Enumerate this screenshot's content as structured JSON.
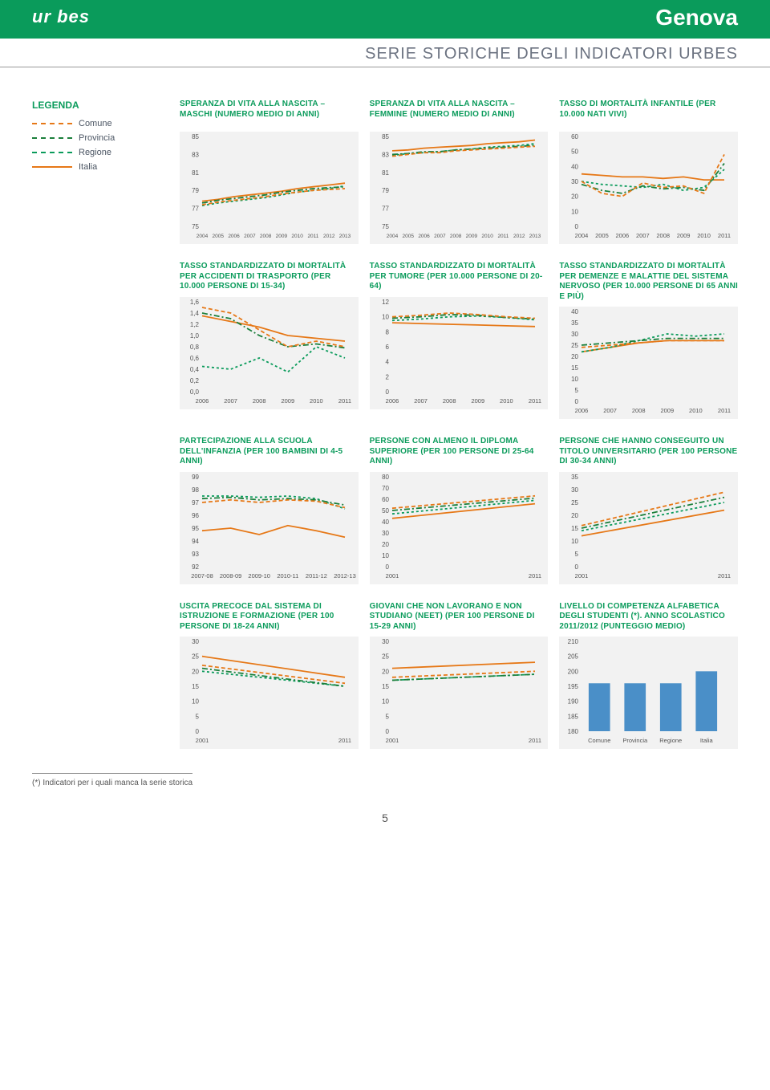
{
  "header": {
    "logo": "ur bes",
    "city": "Genova",
    "subtitle": "SERIE STORICHE DEGLI INDICATORI URBES"
  },
  "legend": {
    "title": "LEGENDA",
    "items": [
      {
        "label": "Comune",
        "color": "#e67817",
        "dash": "4 3"
      },
      {
        "label": "Provincia",
        "color": "#1b7f3b",
        "dash": "6 3 2 3"
      },
      {
        "label": "Regione",
        "color": "#0a9b5b",
        "dash": "3 3"
      },
      {
        "label": "Italia",
        "color": "#e67817",
        "dash": ""
      }
    ]
  },
  "series_colors": {
    "comune": {
      "color": "#e67817",
      "dash": "5 3"
    },
    "provincia": {
      "color": "#1b7f3b",
      "dash": "7 3 2 3"
    },
    "regione": {
      "color": "#0a9b5b",
      "dash": "3 3"
    },
    "italia": {
      "color": "#e67817",
      "dash": ""
    }
  },
  "panels": [
    {
      "title": "SPERANZA DI VITA ALLA NASCITA – MASCHI (NUMERO MEDIO DI ANNI)",
      "ylim": [
        75,
        85
      ],
      "ytick_step": 2,
      "xlabels": [
        "2004",
        "2005",
        "2006",
        "2007",
        "2008",
        "2009",
        "2010",
        "2011",
        "2012",
        "2013"
      ],
      "series": {
        "comune": [
          77.4,
          77.7,
          77.9,
          78.1,
          78.3,
          78.6,
          78.8,
          79.0,
          79.1,
          79.2
        ],
        "provincia": [
          77.6,
          77.9,
          78.1,
          78.3,
          78.5,
          78.8,
          79.0,
          79.2,
          79.3,
          79.4
        ],
        "regione": [
          77.3,
          77.6,
          77.8,
          78.0,
          78.2,
          78.5,
          78.8,
          79.0,
          79.2,
          79.5
        ],
        "italia": [
          77.8,
          78.0,
          78.3,
          78.5,
          78.7,
          78.9,
          79.2,
          79.4,
          79.6,
          79.8
        ]
      }
    },
    {
      "title": "SPERANZA DI VITA ALLA NASCITA – FEMMINE (NUMERO MEDIO DI ANNI)",
      "ylim": [
        75,
        85
      ],
      "ytick_step": 2,
      "xlabels": [
        "2004",
        "2005",
        "2006",
        "2007",
        "2008",
        "2009",
        "2010",
        "2011",
        "2012",
        "2013"
      ],
      "series": {
        "comune": [
          82.8,
          83.0,
          83.2,
          83.2,
          83.4,
          83.5,
          83.6,
          83.7,
          83.8,
          83.9
        ],
        "provincia": [
          83.0,
          83.1,
          83.3,
          83.3,
          83.5,
          83.6,
          83.7,
          83.8,
          83.9,
          84.0
        ],
        "regione": [
          82.9,
          83.1,
          83.2,
          83.3,
          83.5,
          83.6,
          83.8,
          83.9,
          84.0,
          84.2
        ],
        "italia": [
          83.4,
          83.5,
          83.7,
          83.8,
          83.9,
          84.0,
          84.2,
          84.3,
          84.4,
          84.6
        ]
      }
    },
    {
      "title": "TASSO DI MORTALITÀ INFANTILE (PER 10.000 NATI VIVI)",
      "ylim": [
        0,
        60
      ],
      "ytick_step": 10,
      "xlabels": [
        "2004",
        "2005",
        "2006",
        "2007",
        "2008",
        "2009",
        "2010",
        "2011"
      ],
      "series": {
        "comune": [
          30,
          22,
          20,
          29,
          26,
          27,
          22,
          48
        ],
        "provincia": [
          28,
          24,
          22,
          27,
          25,
          26,
          24,
          42
        ],
        "regione": [
          30,
          28,
          27,
          26,
          28,
          24,
          26,
          38
        ],
        "italia": [
          35,
          34,
          33,
          33,
          32,
          33,
          31,
          31
        ]
      }
    },
    {
      "title": "TASSO STANDARDIZZATO DI MORTALITÀ PER ACCIDENTI DI TRASPORTO (PER 10.000 PERSONE DI 15-34)",
      "ylim": [
        0,
        1.6
      ],
      "ytick_step": 0.2,
      "decimals": 1,
      "comma": true,
      "xlabels": [
        "2006",
        "2007",
        "2008",
        "2009",
        "2010",
        "2011"
      ],
      "series": {
        "comune": [
          1.5,
          1.4,
          1.1,
          0.8,
          0.9,
          0.8
        ],
        "provincia": [
          1.4,
          1.3,
          1.0,
          0.8,
          0.85,
          0.78
        ],
        "regione": [
          0.45,
          0.4,
          0.6,
          0.35,
          0.8,
          0.6
        ],
        "italia": [
          1.35,
          1.25,
          1.15,
          1.0,
          0.95,
          0.9
        ]
      }
    },
    {
      "title": "TASSO STANDARDIZZATO DI MORTALITÀ PER TUMORE (PER 10.000 PERSONE DI 20-64)",
      "ylim": [
        0,
        12
      ],
      "ytick_step": 2,
      "xlabels": [
        "2006",
        "2007",
        "2008",
        "2009",
        "2010",
        "2011"
      ],
      "series": {
        "comune": [
          10.0,
          10.2,
          10.5,
          10.3,
          10.0,
          9.8
        ],
        "provincia": [
          9.8,
          10.0,
          10.3,
          10.2,
          9.9,
          9.7
        ],
        "regione": [
          9.5,
          9.7,
          10.0,
          10.1,
          9.9,
          9.6
        ],
        "italia": [
          9.2,
          9.1,
          9.0,
          8.9,
          8.8,
          8.7
        ]
      }
    },
    {
      "title": "TASSO STANDARDIZZATO DI MORTALITÀ PER DEMENZE E MALATTIE DEL SISTEMA NERVOSO (PER 10.000 PERSONE DI 65 ANNI E PIÙ)",
      "ylim": [
        0,
        40
      ],
      "ytick_step": 5,
      "xlabels": [
        "2006",
        "2007",
        "2008",
        "2009",
        "2010",
        "2011"
      ],
      "series": {
        "comune": [
          24,
          25,
          26,
          27,
          27,
          27
        ],
        "provincia": [
          25,
          26,
          27,
          28,
          28,
          28
        ],
        "regione": [
          22,
          24,
          27,
          30,
          29,
          30
        ],
        "italia": [
          22,
          24,
          26,
          27,
          27,
          27
        ]
      }
    },
    {
      "title": "PARTECIPAZIONE ALLA SCUOLA DELL'INFANZIA (PER 100 BAMBINI DI 4-5 ANNI)",
      "ylim": [
        92,
        99
      ],
      "ytick_step": 1,
      "xlabels": [
        "2007-08",
        "2008-09",
        "2009-10",
        "2010-11",
        "2011-12",
        "2012-13"
      ],
      "series": {
        "comune": [
          97.0,
          97.2,
          97.0,
          97.2,
          97.1,
          96.6
        ],
        "provincia": [
          97.3,
          97.4,
          97.2,
          97.3,
          97.2,
          96.8
        ],
        "regione": [
          97.5,
          97.5,
          97.4,
          97.5,
          97.3,
          96.5
        ],
        "italia": [
          94.8,
          95.0,
          94.5,
          95.2,
          94.8,
          94.3
        ]
      }
    },
    {
      "title": "PERSONE CON ALMENO IL DIPLOMA SUPERIORE (PER 100 PERSONE DI 25-64 ANNI)",
      "ylim": [
        0,
        80
      ],
      "ytick_step": 10,
      "xlabels": [
        "2001",
        "2011"
      ],
      "series": {
        "comune": [
          52,
          63
        ],
        "provincia": [
          50,
          61
        ],
        "regione": [
          47,
          59
        ],
        "italia": [
          43,
          56
        ]
      }
    },
    {
      "title": "PERSONE CHE HANNO CONSEGUITO UN TITOLO UNIVERSITARIO (PER 100 PERSONE DI 30-34 ANNI)",
      "ylim": [
        0,
        35
      ],
      "ytick_step": 5,
      "xlabels": [
        "2001",
        "2011"
      ],
      "series": {
        "comune": [
          16,
          29
        ],
        "provincia": [
          15,
          27
        ],
        "regione": [
          14,
          25
        ],
        "italia": [
          12,
          22
        ]
      }
    },
    {
      "title": "USCITA PRECOCE DAL SISTEMA DI ISTRUZIONE E FORMAZIONE (PER 100 PERSONE DI 18-24 ANNI)",
      "ylim": [
        0,
        30
      ],
      "ytick_step": 5,
      "xlabels": [
        "2001",
        "2011"
      ],
      "series": {
        "comune": [
          22,
          16
        ],
        "provincia": [
          21,
          15
        ],
        "regione": [
          20,
          15
        ],
        "italia": [
          25,
          18
        ]
      }
    },
    {
      "title": "GIOVANI CHE NON LAVORANO E NON STUDIANO (NEET) (PER 100 PERSONE DI 15-29 ANNI)",
      "ylim": [
        0,
        30
      ],
      "ytick_step": 5,
      "xlabels": [
        "2001",
        "2011"
      ],
      "series": {
        "comune": [
          18,
          20
        ],
        "provincia": [
          17,
          19
        ],
        "regione": [
          17,
          19
        ],
        "italia": [
          21,
          23
        ]
      }
    },
    {
      "title": "LIVELLO DI COMPETENZA ALFABETICA DEGLI STUDENTI (*). ANNO SCOLASTICO 2011/2012 (PUNTEGGIO MEDIO)",
      "type": "bar",
      "ylim": [
        180,
        210
      ],
      "ytick_step": 5,
      "xlabels": [
        "Comune",
        "Provincia",
        "Regione",
        "Italia"
      ],
      "values": [
        196,
        196,
        196,
        200
      ],
      "bar_color": "#4a8fc8"
    }
  ],
  "footnote": "(*) Indicatori per i quali manca la serie storica",
  "page_number": "5"
}
